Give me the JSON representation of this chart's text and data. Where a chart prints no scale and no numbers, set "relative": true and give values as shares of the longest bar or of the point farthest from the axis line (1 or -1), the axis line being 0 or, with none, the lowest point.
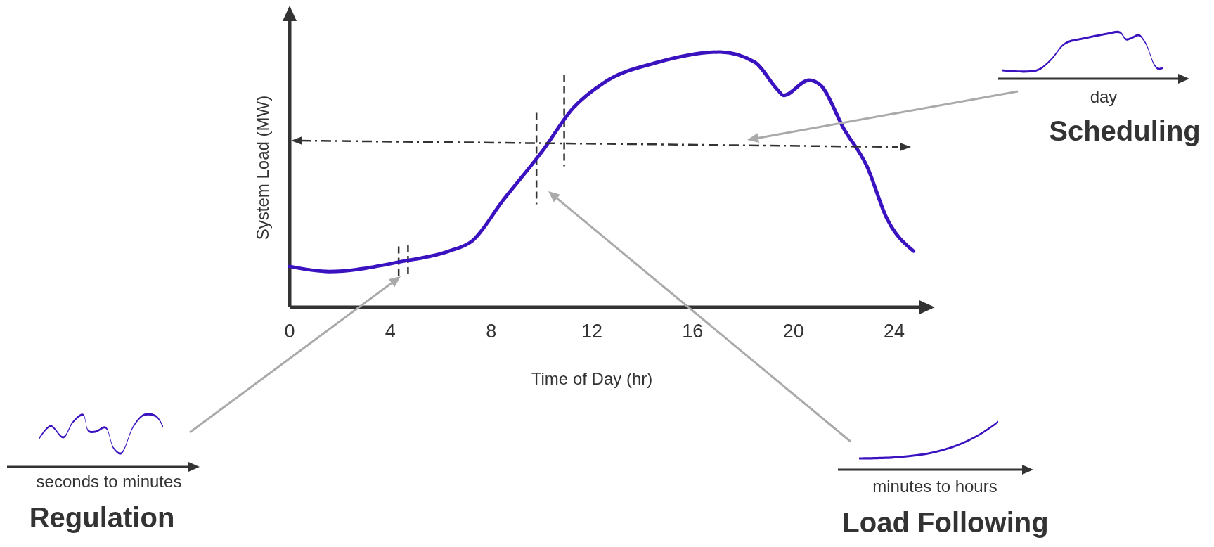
{
  "chart_data": {
    "type": "line",
    "relative": true,
    "xlabel": "Time of Day (hr)",
    "ylabel": "System Load (MW)",
    "xlim": [
      0,
      25
    ],
    "xticks": [
      0,
      4,
      8,
      12,
      16,
      20,
      24
    ],
    "marker": "none",
    "line_style": "solid",
    "grid": false,
    "series": [
      {
        "color": "#3a12c0",
        "x": [
          0,
          1.57,
          4.49,
          6.33,
          7.25,
          8.48,
          10.02,
          11.25,
          12.48,
          14.63,
          17.09,
          18.47,
          19.39,
          19.61,
          20.62,
          21.08,
          22.0,
          22.93,
          23.7,
          24.77
        ],
        "values": [
          0.16,
          0.14,
          0.18,
          0.22,
          0.26,
          0.42,
          0.61,
          0.78,
          0.88,
          0.96,
          1,
          0.96,
          0.85,
          0.83,
          0.89,
          0.87,
          0.7,
          0.55,
          0.35,
          0.22
        ]
      }
    ],
    "ref_lines": [
      {
        "axis": "x",
        "value": 4.33,
        "line_style": "dashed",
        "color": "#333333"
      },
      {
        "axis": "x",
        "value": 4.7,
        "line_style": "dashed",
        "color": "#333333"
      },
      {
        "axis": "x",
        "value": 9.8,
        "line_style": "dashed",
        "color": "#333333"
      },
      {
        "axis": "x",
        "value": 10.9,
        "line_style": "dashed",
        "color": "#333333"
      }
    ],
    "annotations": [
      "Regulation",
      "seconds to minutes",
      "Load Following",
      "minutes to hours",
      "Scheduling",
      "day"
    ]
  }
}
